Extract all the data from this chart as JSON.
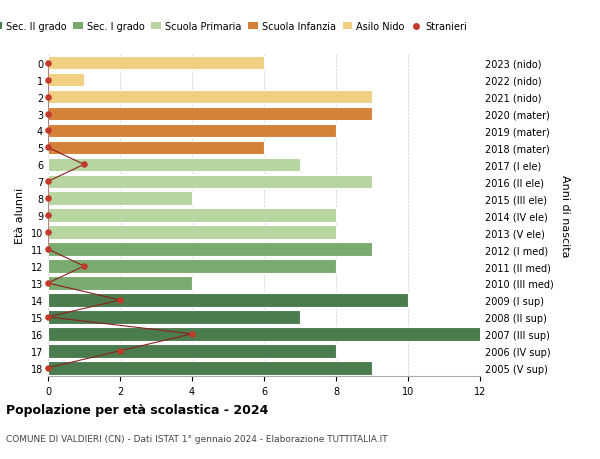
{
  "ages": [
    18,
    17,
    16,
    15,
    14,
    13,
    12,
    11,
    10,
    9,
    8,
    7,
    6,
    5,
    4,
    3,
    2,
    1,
    0
  ],
  "right_labels": [
    "2005 (V sup)",
    "2006 (IV sup)",
    "2007 (III sup)",
    "2008 (II sup)",
    "2009 (I sup)",
    "2010 (III med)",
    "2011 (II med)",
    "2012 (I med)",
    "2013 (V ele)",
    "2014 (IV ele)",
    "2015 (III ele)",
    "2016 (II ele)",
    "2017 (I ele)",
    "2018 (mater)",
    "2019 (mater)",
    "2020 (mater)",
    "2021 (nido)",
    "2022 (nido)",
    "2023 (nido)"
  ],
  "bar_values": [
    9,
    8,
    13,
    7,
    10,
    4,
    8,
    9,
    8,
    8,
    4,
    9,
    7,
    6,
    8,
    9,
    9,
    1,
    6
  ],
  "stranieri_values": [
    0,
    2,
    4,
    0,
    2,
    0,
    1,
    0,
    0,
    0,
    0,
    0,
    1,
    0,
    0,
    0,
    0,
    0,
    0
  ],
  "bar_colors": [
    "#4a7c4e",
    "#4a7c4e",
    "#4a7c4e",
    "#4a7c4e",
    "#4a7c4e",
    "#7aab6e",
    "#7aab6e",
    "#7aab6e",
    "#b8d4a0",
    "#b8d4a0",
    "#b8d4a0",
    "#b8d4a0",
    "#b8d4a0",
    "#d4813a",
    "#d4813a",
    "#d4813a",
    "#f0d080",
    "#f0d080",
    "#f0d080"
  ],
  "legend_labels": [
    "Sec. II grado",
    "Sec. I grado",
    "Scuola Primaria",
    "Scuola Infanzia",
    "Asilo Nido",
    "Stranieri"
  ],
  "legend_colors": [
    "#4a7c4e",
    "#7aab6e",
    "#b8d4a0",
    "#d4813a",
    "#f0d080",
    "#c0392b"
  ],
  "title": "Popolazione per età scolastica - 2024",
  "subtitle": "COMUNE DI VALDIERI (CN) - Dati ISTAT 1° gennaio 2024 - Elaborazione TUTTITALIA.IT",
  "ylabel_left": "Età alunni",
  "ylabel_right": "Anni di nascita",
  "xlim": [
    0,
    12
  ],
  "stranieri_color": "#c0392b",
  "stranieri_line_color": "#8b2020",
  "background_color": "#ffffff",
  "bar_edge_color": "#ffffff"
}
